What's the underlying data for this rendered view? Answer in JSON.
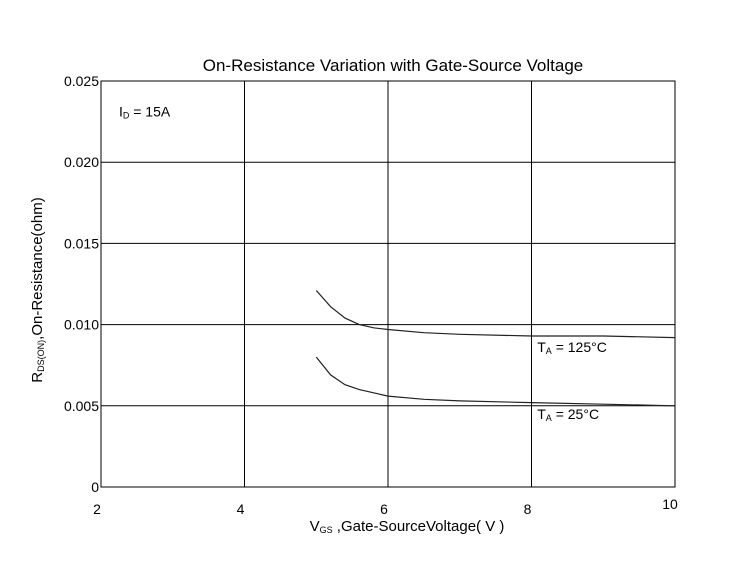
{
  "chart_data": {
    "type": "line",
    "title": "On-Resistance Variation with Gate-Source Voltage",
    "xlabel": {
      "main": "V",
      "sub": "GS",
      "rest": " ,Gate-SourceVoltage( V )"
    },
    "ylabel": {
      "main": "R",
      "sub": "DS(ON)",
      "rest": ",On-Resistance(ohm)"
    },
    "xlim": [
      2,
      10
    ],
    "ylim": [
      0,
      0.025
    ],
    "x_ticks": [
      2,
      4,
      6,
      8,
      10
    ],
    "x_tick_labels": [
      "2",
      "4",
      "6",
      "8",
      "10"
    ],
    "y_ticks": [
      0,
      0.005,
      0.01,
      0.015,
      0.02,
      0.025
    ],
    "y_tick_labels": [
      "0",
      "0.005",
      "0.010",
      "0.015",
      "0.020",
      "0.025"
    ],
    "grid": true,
    "annotations": [
      {
        "main": "I",
        "sub": "D",
        "rest": " = 15A",
        "x": 2.25,
        "y": 0.0228
      },
      {
        "main": "T",
        "sub": "A",
        "rest": " = 125°C",
        "x": 8.08,
        "y": 0.0083
      },
      {
        "main": "T",
        "sub": "A",
        "rest": " = 25°C",
        "x": 8.08,
        "y": 0.0042
      }
    ],
    "series": [
      {
        "label_ref": 1,
        "x": [
          5.0,
          5.2,
          5.4,
          5.6,
          5.8,
          6.0,
          6.5,
          7.0,
          8.0,
          9.0,
          10.0
        ],
        "y": [
          0.0121,
          0.0111,
          0.0104,
          0.01,
          0.0098,
          0.0097,
          0.0095,
          0.0094,
          0.0093,
          0.0093,
          0.0092
        ]
      },
      {
        "label_ref": 2,
        "x": [
          5.0,
          5.2,
          5.4,
          5.6,
          5.8,
          6.0,
          6.5,
          7.0,
          8.0,
          9.0,
          10.0
        ],
        "y": [
          0.008,
          0.0069,
          0.0063,
          0.006,
          0.0058,
          0.0056,
          0.0054,
          0.0053,
          0.0052,
          0.0051,
          0.005
        ]
      }
    ]
  }
}
